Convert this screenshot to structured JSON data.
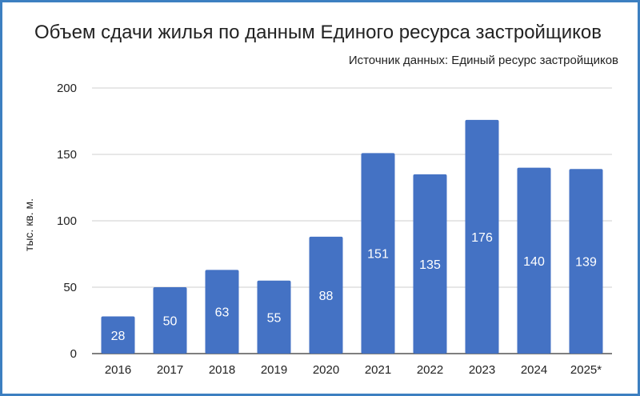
{
  "chart_data": {
    "type": "bar",
    "title": "Объем сдачи жилья по данным Единого ресурса застройщиков",
    "subtitle": "Источник данных: Единый ресурс застройщиков",
    "xlabel": "",
    "ylabel": "тыс. кв. м.",
    "categories": [
      "2016",
      "2017",
      "2018",
      "2019",
      "2020",
      "2021",
      "2022",
      "2023",
      "2024",
      "2025*"
    ],
    "values": [
      28,
      50,
      63,
      55,
      88,
      151,
      135,
      176,
      140,
      139
    ],
    "ylim": [
      0,
      200
    ],
    "yticks": [
      0,
      50,
      100,
      150,
      200
    ],
    "grid": true,
    "legend": "none",
    "bar_color": "#4472c4",
    "label_color": "#ffffff"
  }
}
